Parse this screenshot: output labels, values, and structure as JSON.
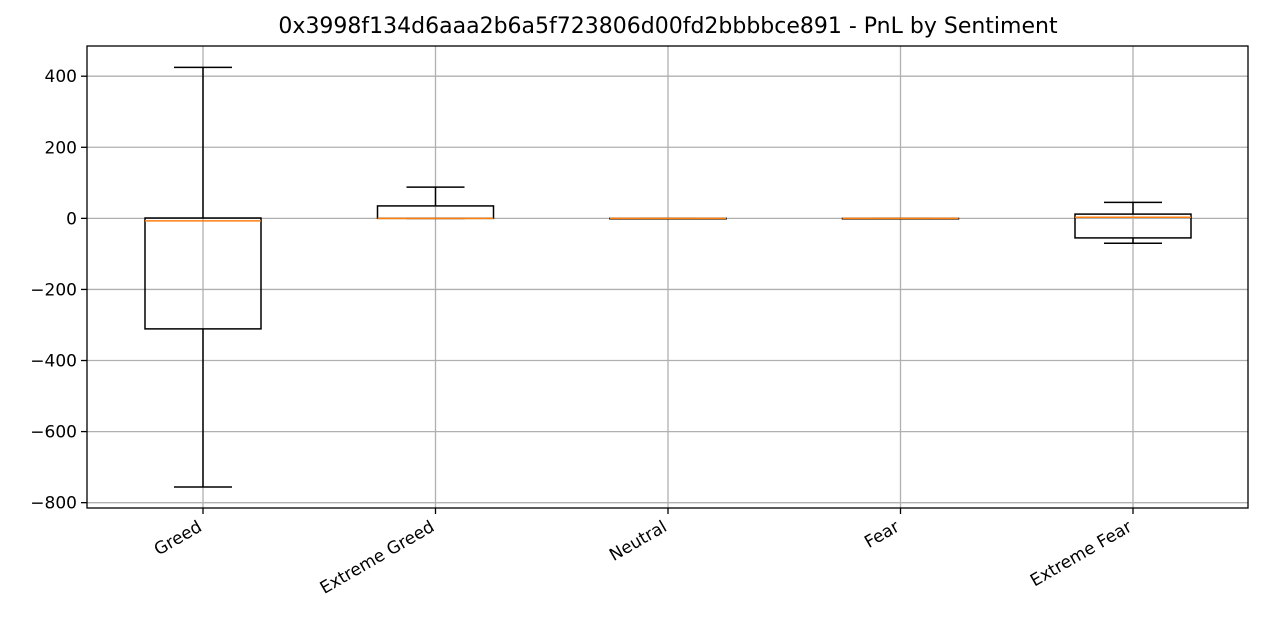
{
  "chart_data": {
    "type": "box",
    "title": "0x3998f134d6aaa2b6a5f723806d00fd2bbbbce891 - PnL by Sentiment",
    "xlabel": "",
    "ylabel": "",
    "ylim": [
      -815,
      485
    ],
    "yticks": [
      400,
      200,
      0,
      -200,
      -400,
      -600,
      -800
    ],
    "ytick_labels": [
      "400",
      "200",
      "0",
      "−200",
      "−400",
      "−600",
      "−800"
    ],
    "categories": [
      "Greed",
      "Extreme Greed",
      "Neutral",
      "Fear",
      "Extreme Fear"
    ],
    "boxes": [
      {
        "category": "Greed",
        "whisker_low": -756,
        "q1": -311,
        "median": -7,
        "q3": 1,
        "whisker_high": 425
      },
      {
        "category": "Extreme Greed",
        "whisker_low": 0,
        "q1": 0,
        "median": 0,
        "q3": 35,
        "whisker_high": 88
      },
      {
        "category": "Neutral",
        "whisker_low": 0,
        "q1": 0,
        "median": 0,
        "q3": 0,
        "whisker_high": 0
      },
      {
        "category": "Fear",
        "whisker_low": 0,
        "q1": 0,
        "median": 0,
        "q3": 0,
        "whisker_high": 0
      },
      {
        "category": "Extreme Fear",
        "whisker_low": -70,
        "q1": -55,
        "median": 3,
        "q3": 12,
        "whisker_high": 45
      }
    ],
    "grid": true,
    "legend": "none",
    "box_color": "#000000",
    "median_color": "#ff7f0e",
    "grid_color": "#b0b0b0"
  }
}
